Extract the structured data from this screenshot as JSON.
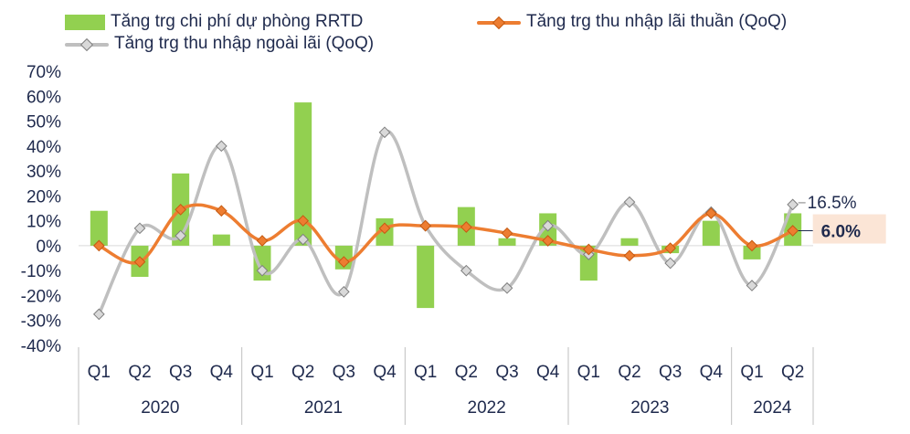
{
  "chart_data": {
    "type": "bar+line",
    "categories": [
      "Q1",
      "Q2",
      "Q3",
      "Q4",
      "Q1",
      "Q2",
      "Q3",
      "Q4",
      "Q1",
      "Q2",
      "Q3",
      "Q4",
      "Q1",
      "Q2",
      "Q3",
      "Q4",
      "Q1",
      "Q2"
    ],
    "years": [
      {
        "label": "2020",
        "count": 4
      },
      {
        "label": "2021",
        "count": 4
      },
      {
        "label": "2022",
        "count": 4
      },
      {
        "label": "2023",
        "count": 4
      },
      {
        "label": "2024",
        "count": 2
      }
    ],
    "ylim": [
      -40,
      70
    ],
    "yticks": [
      -40,
      -30,
      -20,
      -10,
      0,
      10,
      20,
      30,
      40,
      50,
      60,
      70
    ],
    "ytick_labels": [
      "-40%",
      "-30%",
      "-20%",
      "-10%",
      "0%",
      "10%",
      "20%",
      "30%",
      "40%",
      "50%",
      "60%",
      "70%"
    ],
    "series": [
      {
        "name": "Tăng trg chi phí dự phòng RRTD",
        "kind": "bar",
        "color": "#92d050",
        "values": [
          14,
          -12.5,
          29,
          4.5,
          -14,
          57.5,
          -9.5,
          11,
          -25,
          15.5,
          3,
          13,
          -14,
          3,
          -3,
          10,
          -5.5,
          13
        ]
      },
      {
        "name": "Tăng trg thu nhập lãi thuần (QoQ)",
        "kind": "line",
        "color": "#ed7d31",
        "values": [
          0,
          -6.5,
          14.5,
          14,
          2,
          10,
          -6.5,
          7,
          8,
          7.5,
          5,
          2,
          -1.5,
          -4,
          -1,
          13,
          0,
          6
        ]
      },
      {
        "name": "Tăng trg thu nhập ngoài lãi (QoQ)",
        "kind": "line",
        "color": "#bfbfbf",
        "values": [
          -27.5,
          7,
          4,
          40,
          -10,
          2.5,
          -18.5,
          45.5,
          8,
          -10,
          -17,
          8,
          -3.5,
          17.5,
          -7,
          13.5,
          -16,
          16.5
        ]
      }
    ],
    "end_labels": {
      "gray": "16.5%",
      "orange": "6.0%"
    }
  }
}
